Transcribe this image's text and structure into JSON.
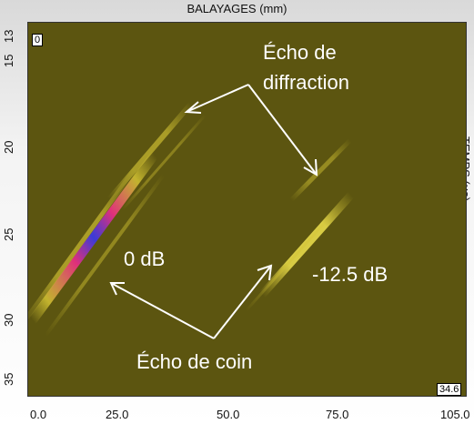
{
  "header": {
    "title": "BALAYAGES (mm)"
  },
  "right_axis": {
    "label": "TEMPS (µs)"
  },
  "axis": {
    "y_ticks": [
      "13",
      "15",
      "20",
      "25",
      "30",
      "35"
    ],
    "x_ticks": [
      "0.0",
      "25.0",
      "50.0",
      "75.0",
      "105.0"
    ]
  },
  "corners": {
    "top_left": "0",
    "bottom_right": "34.6"
  },
  "annotations": {
    "diffraction_line1": "Écho de",
    "diffraction_line2": "diffraction",
    "left_db": "0 dB",
    "right_db": "-12.5 dB",
    "coin": "Écho de coin"
  },
  "colors": {
    "background": "#5c5510",
    "echo_yellow": "#d4c433",
    "echo_peak": "#3b3bd8",
    "echo_magenta": "#e0307a"
  }
}
